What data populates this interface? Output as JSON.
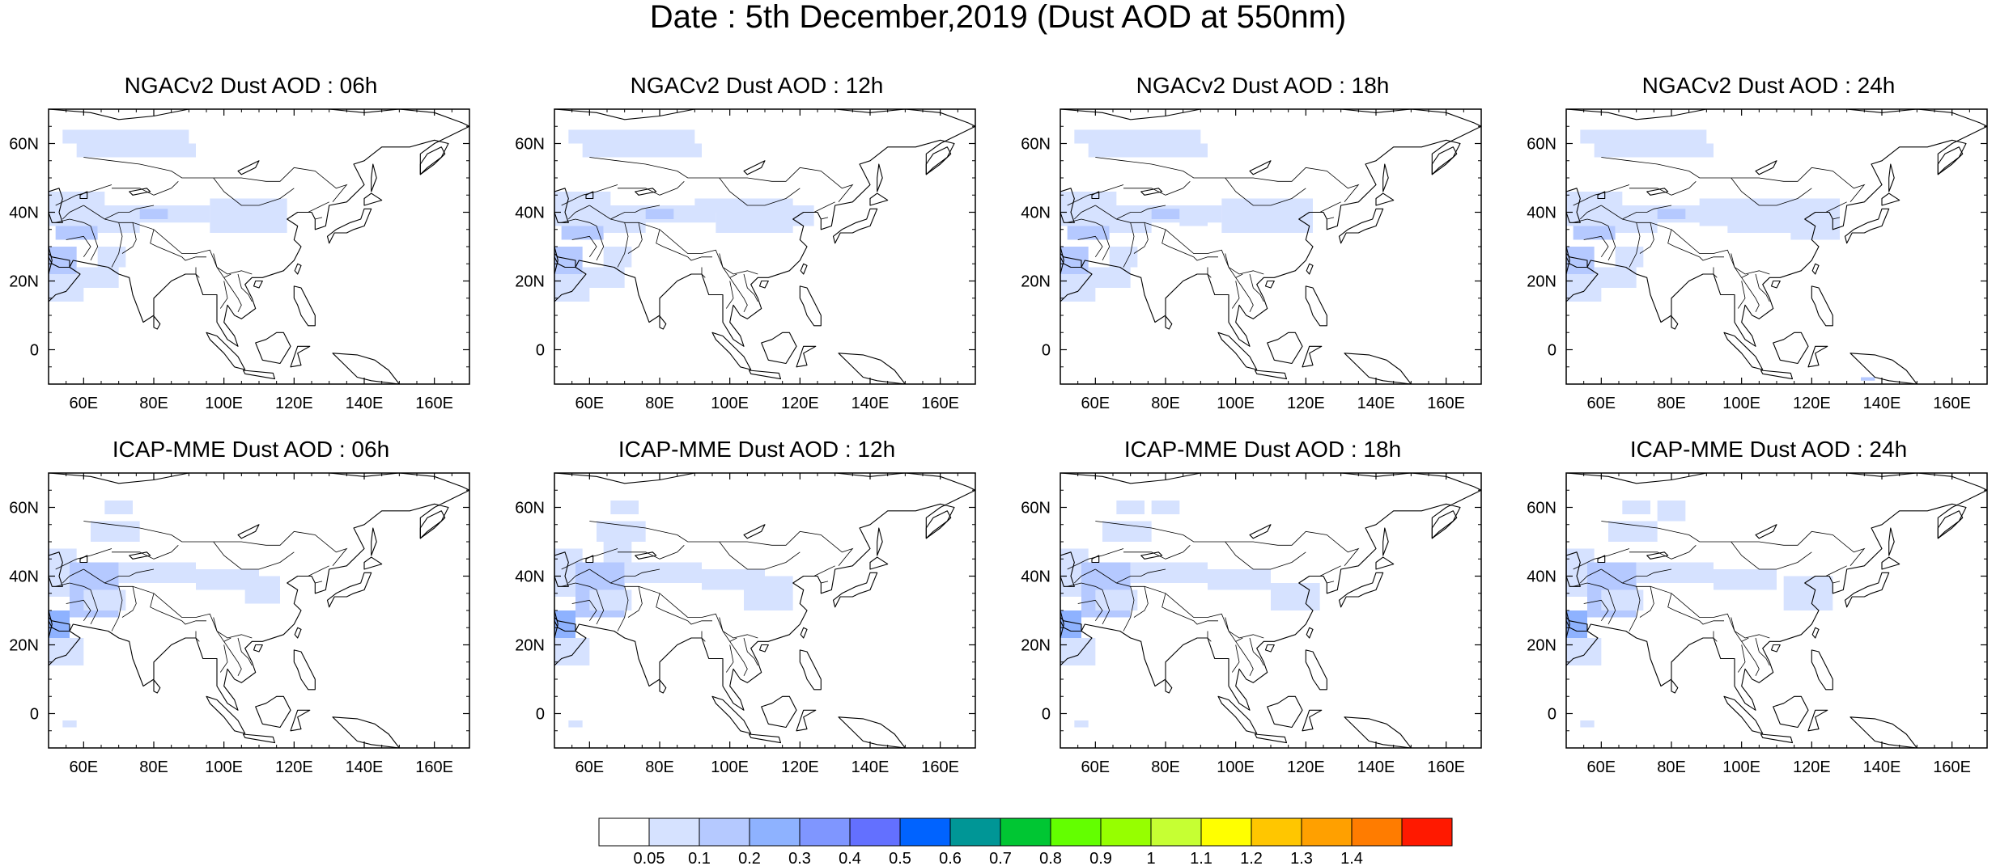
{
  "main_title": "Date : 5th December,2019 (Dust AOD at 550nm)",
  "map": {
    "lon_ticks": [
      "60E",
      "80E",
      "100E",
      "120E",
      "140E",
      "160E"
    ],
    "lon_tick_values": [
      60,
      80,
      100,
      120,
      140,
      160
    ],
    "lat_ticks": [
      "60N",
      "40N",
      "20N",
      "0"
    ],
    "lat_tick_values": [
      60,
      40,
      20,
      0
    ],
    "lon_range": [
      50,
      170
    ],
    "lat_range": [
      -10,
      70
    ]
  },
  "panels": [
    {
      "title": "NGACv2 Dust AOD : 06h",
      "model": "NGACv2",
      "lead": "06h"
    },
    {
      "title": "NGACv2 Dust AOD : 12h",
      "model": "NGACv2",
      "lead": "12h"
    },
    {
      "title": "NGACv2 Dust AOD : 18h",
      "model": "NGACv2",
      "lead": "18h"
    },
    {
      "title": "NGACv2 Dust AOD : 24h",
      "model": "NGACv2",
      "lead": "24h"
    },
    {
      "title": "ICAP-MME Dust AOD : 06h",
      "model": "ICAP-MME",
      "lead": "06h"
    },
    {
      "title": "ICAP-MME Dust AOD : 12h",
      "model": "ICAP-MME",
      "lead": "12h"
    },
    {
      "title": "ICAP-MME Dust AOD : 18h",
      "model": "ICAP-MME",
      "lead": "18h"
    },
    {
      "title": "ICAP-MME Dust AOD : 24h",
      "model": "ICAP-MME",
      "lead": "24h"
    }
  ],
  "colorbar": {
    "labels": [
      "0.05",
      "0.1",
      "0.2",
      "0.3",
      "0.4",
      "0.5",
      "0.6",
      "0.7",
      "0.8",
      "0.9",
      "1",
      "1.1",
      "1.2",
      "1.3",
      "1.4"
    ],
    "colors": [
      "#ffffff",
      "#d6e2ff",
      "#b5c9ff",
      "#8eb2ff",
      "#7f96ff",
      "#6370ff",
      "#0063ff",
      "#009696",
      "#00c633",
      "#63ff00",
      "#96ff00",
      "#c6ff33",
      "#ffff00",
      "#ffc600",
      "#ffa000",
      "#ff7c00",
      "#ff1900"
    ]
  },
  "dust_levels": {
    "light": "#d6e2ff",
    "medium": "#b5c9ff",
    "strong": "#8eb2ff"
  }
}
